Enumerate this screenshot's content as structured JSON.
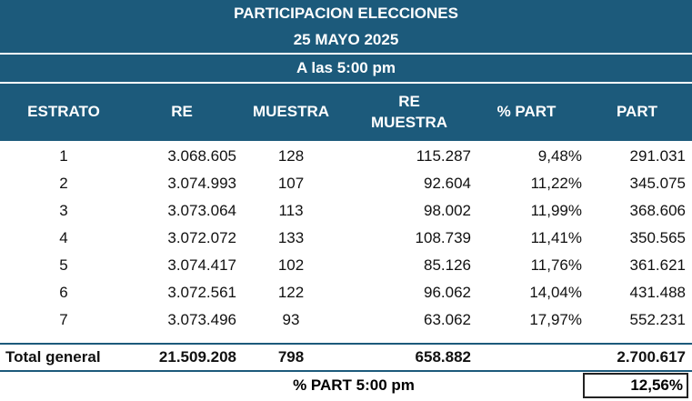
{
  "title": "PARTICIPACION ELECCIONES",
  "date": "25 MAYO 2025",
  "time": "A las 5:00 pm",
  "columns": [
    "ESTRATO",
    "RE",
    "MUESTRA",
    "RE MUESTRA",
    "% PART",
    "PART"
  ],
  "rows": [
    [
      "1",
      "3.068.605",
      "128",
      "115.287",
      "9,48%",
      "291.031"
    ],
    [
      "2",
      "3.074.993",
      "107",
      "92.604",
      "11,22%",
      "345.075"
    ],
    [
      "3",
      "3.073.064",
      "113",
      "98.002",
      "11,99%",
      "368.606"
    ],
    [
      "4",
      "3.072.072",
      "133",
      "108.739",
      "11,41%",
      "350.565"
    ],
    [
      "5",
      "3.074.417",
      "102",
      "85.126",
      "11,76%",
      "361.621"
    ],
    [
      "6",
      "3.072.561",
      "122",
      "96.062",
      "14,04%",
      "431.488"
    ],
    [
      "7",
      "3.073.496",
      "93",
      "63.062",
      "17,97%",
      "552.231"
    ]
  ],
  "total": [
    "Total general",
    "21.509.208",
    "798",
    "658.882",
    "",
    "2.700.617"
  ],
  "footer": {
    "label": "% PART 5:00 pm",
    "value": "12,56%"
  },
  "colors": {
    "header_bg": "#1c5a7b",
    "header_text": "#ffffff"
  }
}
